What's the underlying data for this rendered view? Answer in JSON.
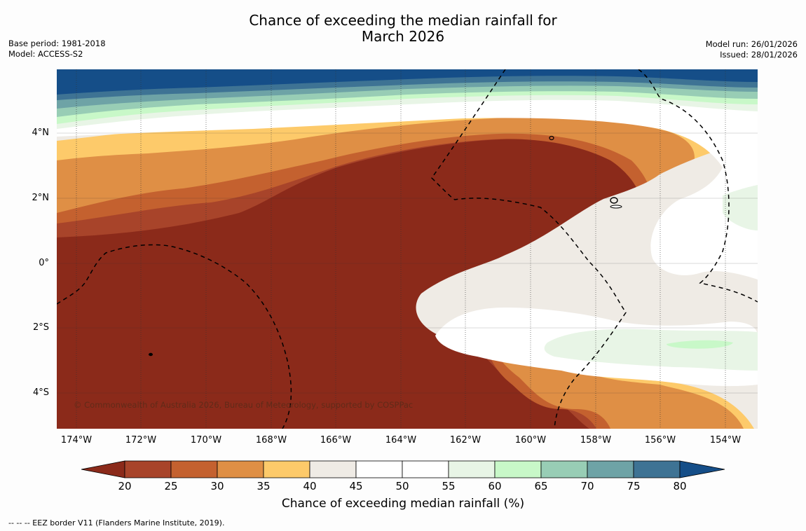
{
  "title": {
    "line1": "Chance of exceeding the median rainfall for",
    "line2": "March 2026"
  },
  "meta": {
    "base_period": "Base period: 1981-2018",
    "model": "Model: ACCESS-S2",
    "model_run": "Model run: 26/01/2026",
    "issued": "Issued: 28/01/2026"
  },
  "map": {
    "copyright": "© Commonwealth of Australia 2026, Bureau of Meteorology, supported by COSPPac",
    "lat_labels": [
      "4°N",
      "2°N",
      "0°",
      "2°S",
      "4°S"
    ],
    "lon_labels": [
      "174°W",
      "172°W",
      "170°W",
      "168°W",
      "166°W",
      "164°W",
      "162°W",
      "160°W",
      "158°W",
      "156°W",
      "154°W"
    ]
  },
  "colorbar": {
    "label": "Chance of exceeding median rainfall (%)",
    "ticks": [
      "20",
      "25",
      "30",
      "35",
      "40",
      "45",
      "50",
      "55",
      "60",
      "65",
      "70",
      "75",
      "80"
    ],
    "colors": {
      "below_20": "#8b2a1a",
      "c20": "#a8442a",
      "c25": "#c4612f",
      "c30": "#df8f45",
      "c35": "#fdca6a",
      "c40": "#efebe5",
      "c45": "#ffffff",
      "c50": "#ffffff",
      "c55": "#e8f5e6",
      "c60": "#c8f8c8",
      "c65": "#98cdb5",
      "c70": "#6ea3a6",
      "c75": "#3e7394",
      "above_80": "#154e88"
    }
  },
  "footnote": "--  --  -- EEZ border V11 (Flanders Marine Institute, 2019)."
}
